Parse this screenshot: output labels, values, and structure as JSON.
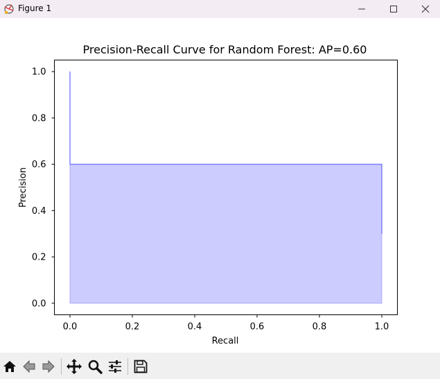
{
  "window": {
    "title": "Figure 1",
    "icon": "matplotlib-figure-icon",
    "controls": [
      "minimize-icon",
      "maximize-icon",
      "close-icon"
    ]
  },
  "toolbar": {
    "buttons": [
      "home-icon",
      "back-arrow-icon",
      "forward-arrow-icon",
      "pan-move-icon",
      "zoom-magnifier-icon",
      "configure-subplots-icon",
      "save-disk-icon"
    ]
  },
  "chart_data": {
    "type": "area",
    "title": "Precision-Recall Curve for Random Forest: AP=0.60",
    "xlabel": "Recall",
    "ylabel": "Precision",
    "xlim": [
      -0.05,
      1.05
    ],
    "ylim": [
      -0.05,
      1.05
    ],
    "xticks": [
      0.0,
      0.2,
      0.4,
      0.6,
      0.8,
      1.0
    ],
    "xtick_labels": [
      "0.0",
      "0.2",
      "0.4",
      "0.6",
      "0.8",
      "1.0"
    ],
    "yticks": [
      0.0,
      0.2,
      0.4,
      0.6,
      0.8,
      1.0
    ],
    "ytick_labels": [
      "0.0",
      "0.2",
      "0.4",
      "0.6",
      "0.8",
      "1.0"
    ],
    "grid": false,
    "series": [
      {
        "recall": [
          0.0,
          0.0,
          1.0,
          1.0
        ],
        "precision": [
          1.0,
          0.6,
          0.6,
          0.3
        ],
        "color": "#8080ff",
        "fill_color": "#ccccff",
        "drawstyle": "steps-post"
      }
    ]
  }
}
